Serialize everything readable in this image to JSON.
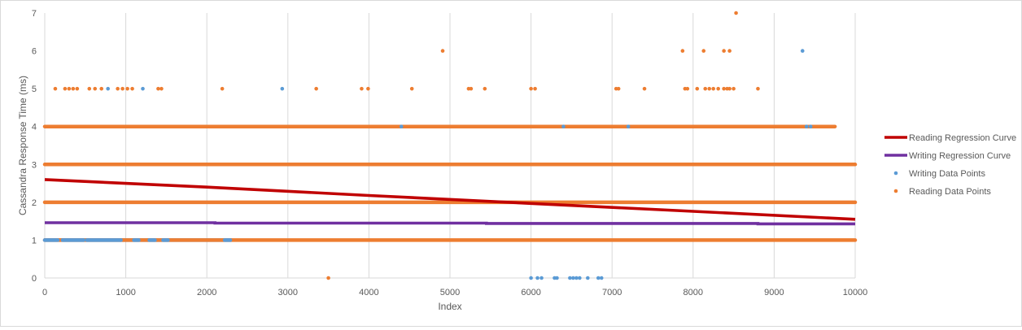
{
  "chart_data": {
    "type": "scatter",
    "xlabel": "Index",
    "ylabel": "Cassandra Response Time (ms)",
    "xlim": [
      0,
      10000
    ],
    "ylim": [
      0,
      7
    ],
    "x_ticks": [
      "0",
      "1000",
      "2000",
      "3000",
      "4000",
      "5000",
      "6000",
      "7000",
      "8000",
      "9000",
      "10000"
    ],
    "y_ticks": [
      "0",
      "1",
      "2",
      "3",
      "4",
      "5",
      "6",
      "7"
    ],
    "grid": "vertical",
    "legend_position": "right",
    "legend": [
      {
        "label": "Reading Regression Curve",
        "kind": "line",
        "color": "#c00000"
      },
      {
        "label": "Writing Regression Curve",
        "kind": "line",
        "color": "#7030a0"
      },
      {
        "label": "Writing Data Points",
        "kind": "marker",
        "color": "#5b9bd5"
      },
      {
        "label": "Reading Data Points",
        "kind": "marker",
        "color": "#ed7d31"
      }
    ],
    "series": [
      {
        "name": "Reading Regression Curve",
        "kind": "line",
        "color": "#c00000",
        "points": [
          [
            0,
            2.6
          ],
          [
            2000,
            2.4
          ],
          [
            4000,
            2.18
          ],
          [
            6000,
            1.97
          ],
          [
            8000,
            1.76
          ],
          [
            10000,
            1.55
          ]
        ]
      },
      {
        "name": "Writing Regression Curve",
        "kind": "line",
        "color": "#7030a0",
        "points": [
          [
            0,
            1.46
          ],
          [
            2100,
            1.46
          ],
          [
            2100,
            1.45
          ],
          [
            5450,
            1.45
          ],
          [
            5450,
            1.44
          ],
          [
            8800,
            1.44
          ],
          [
            8800,
            1.43
          ],
          [
            10000,
            1.43
          ]
        ]
      },
      {
        "name": "Writing Data Points",
        "kind": "scatter",
        "color": "#5b9bd5",
        "bands": [
          {
            "y": 1,
            "x": [
              0,
              2300
            ]
          }
        ],
        "points": [
          [
            780,
            5
          ],
          [
            1210,
            5
          ],
          [
            2930,
            5
          ],
          [
            9350,
            6
          ],
          [
            6000,
            0
          ],
          [
            6080,
            0
          ],
          [
            6130,
            0
          ],
          [
            6290,
            0
          ],
          [
            6320,
            0
          ],
          [
            6480,
            0
          ],
          [
            6520,
            0
          ],
          [
            6560,
            0
          ],
          [
            6600,
            0
          ],
          [
            6700,
            0
          ],
          [
            6830,
            0
          ],
          [
            6870,
            0
          ],
          [
            7200,
            4
          ],
          [
            4400,
            4
          ],
          [
            6400,
            4
          ],
          [
            9400,
            4
          ],
          [
            9450,
            4
          ]
        ]
      },
      {
        "name": "Reading Data Points",
        "kind": "scatter",
        "color": "#ed7d31",
        "bands": [
          {
            "y": 1,
            "x": [
              0,
              10000
            ]
          },
          {
            "y": 2,
            "x": [
              0,
              10000
            ]
          },
          {
            "y": 3,
            "x": [
              0,
              10000
            ]
          },
          {
            "y": 4,
            "x": [
              0,
              9750
            ]
          }
        ],
        "points": [
          [
            130,
            5
          ],
          [
            250,
            5
          ],
          [
            300,
            5
          ],
          [
            350,
            5
          ],
          [
            400,
            5
          ],
          [
            550,
            5
          ],
          [
            620,
            5
          ],
          [
            700,
            5
          ],
          [
            900,
            5
          ],
          [
            960,
            5
          ],
          [
            1020,
            5
          ],
          [
            1080,
            5
          ],
          [
            1400,
            5
          ],
          [
            1440,
            5
          ],
          [
            2190,
            5
          ],
          [
            3350,
            5
          ],
          [
            3910,
            5
          ],
          [
            3990,
            5
          ],
          [
            4530,
            5
          ],
          [
            5230,
            5
          ],
          [
            5260,
            5
          ],
          [
            5430,
            5
          ],
          [
            6000,
            5
          ],
          [
            6050,
            5
          ],
          [
            7050,
            5
          ],
          [
            7080,
            5
          ],
          [
            7400,
            5
          ],
          [
            7900,
            5
          ],
          [
            7930,
            5
          ],
          [
            8050,
            5
          ],
          [
            8150,
            5
          ],
          [
            8200,
            5
          ],
          [
            8250,
            5
          ],
          [
            8310,
            5
          ],
          [
            8380,
            5
          ],
          [
            8420,
            5
          ],
          [
            8450,
            5
          ],
          [
            8500,
            5
          ],
          [
            8800,
            5
          ],
          [
            4910,
            6
          ],
          [
            7870,
            6
          ],
          [
            8130,
            6
          ],
          [
            8380,
            6
          ],
          [
            8450,
            6
          ],
          [
            8530,
            7
          ],
          [
            3500,
            0
          ]
        ]
      }
    ]
  }
}
